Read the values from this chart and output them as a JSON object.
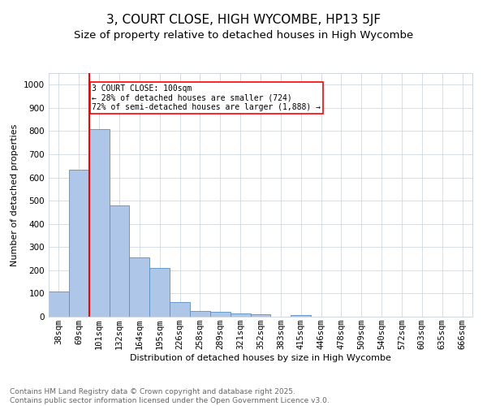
{
  "title1": "3, COURT CLOSE, HIGH WYCOMBE, HP13 5JF",
  "title2": "Size of property relative to detached houses in High Wycombe",
  "xlabel": "Distribution of detached houses by size in High Wycombe",
  "ylabel": "Number of detached properties",
  "bar_labels": [
    "38sqm",
    "69sqm",
    "101sqm",
    "132sqm",
    "164sqm",
    "195sqm",
    "226sqm",
    "258sqm",
    "289sqm",
    "321sqm",
    "352sqm",
    "383sqm",
    "415sqm",
    "446sqm",
    "478sqm",
    "509sqm",
    "540sqm",
    "572sqm",
    "603sqm",
    "635sqm",
    "666sqm"
  ],
  "bar_values": [
    110,
    635,
    810,
    480,
    255,
    210,
    62,
    25,
    20,
    14,
    10,
    0,
    8,
    0,
    0,
    0,
    0,
    0,
    0,
    0,
    0
  ],
  "bar_color": "#aec6e8",
  "bar_edge_color": "#5a8fc2",
  "vline_index": 2,
  "vline_color": "red",
  "annotation_text": "3 COURT CLOSE: 100sqm\n← 28% of detached houses are smaller (724)\n72% of semi-detached houses are larger (1,888) →",
  "annotation_box_color": "white",
  "annotation_box_edge_color": "red",
  "ylim": [
    0,
    1050
  ],
  "yticks": [
    0,
    100,
    200,
    300,
    400,
    500,
    600,
    700,
    800,
    900,
    1000
  ],
  "bg_color": "white",
  "grid_color": "#c8d0dc",
  "footer": "Contains HM Land Registry data © Crown copyright and database right 2025.\nContains public sector information licensed under the Open Government Licence v3.0.",
  "title1_fontsize": 11,
  "title2_fontsize": 9.5,
  "axis_label_fontsize": 8,
  "tick_fontsize": 7.5,
  "annotation_fontsize": 7,
  "footer_fontsize": 6.5
}
